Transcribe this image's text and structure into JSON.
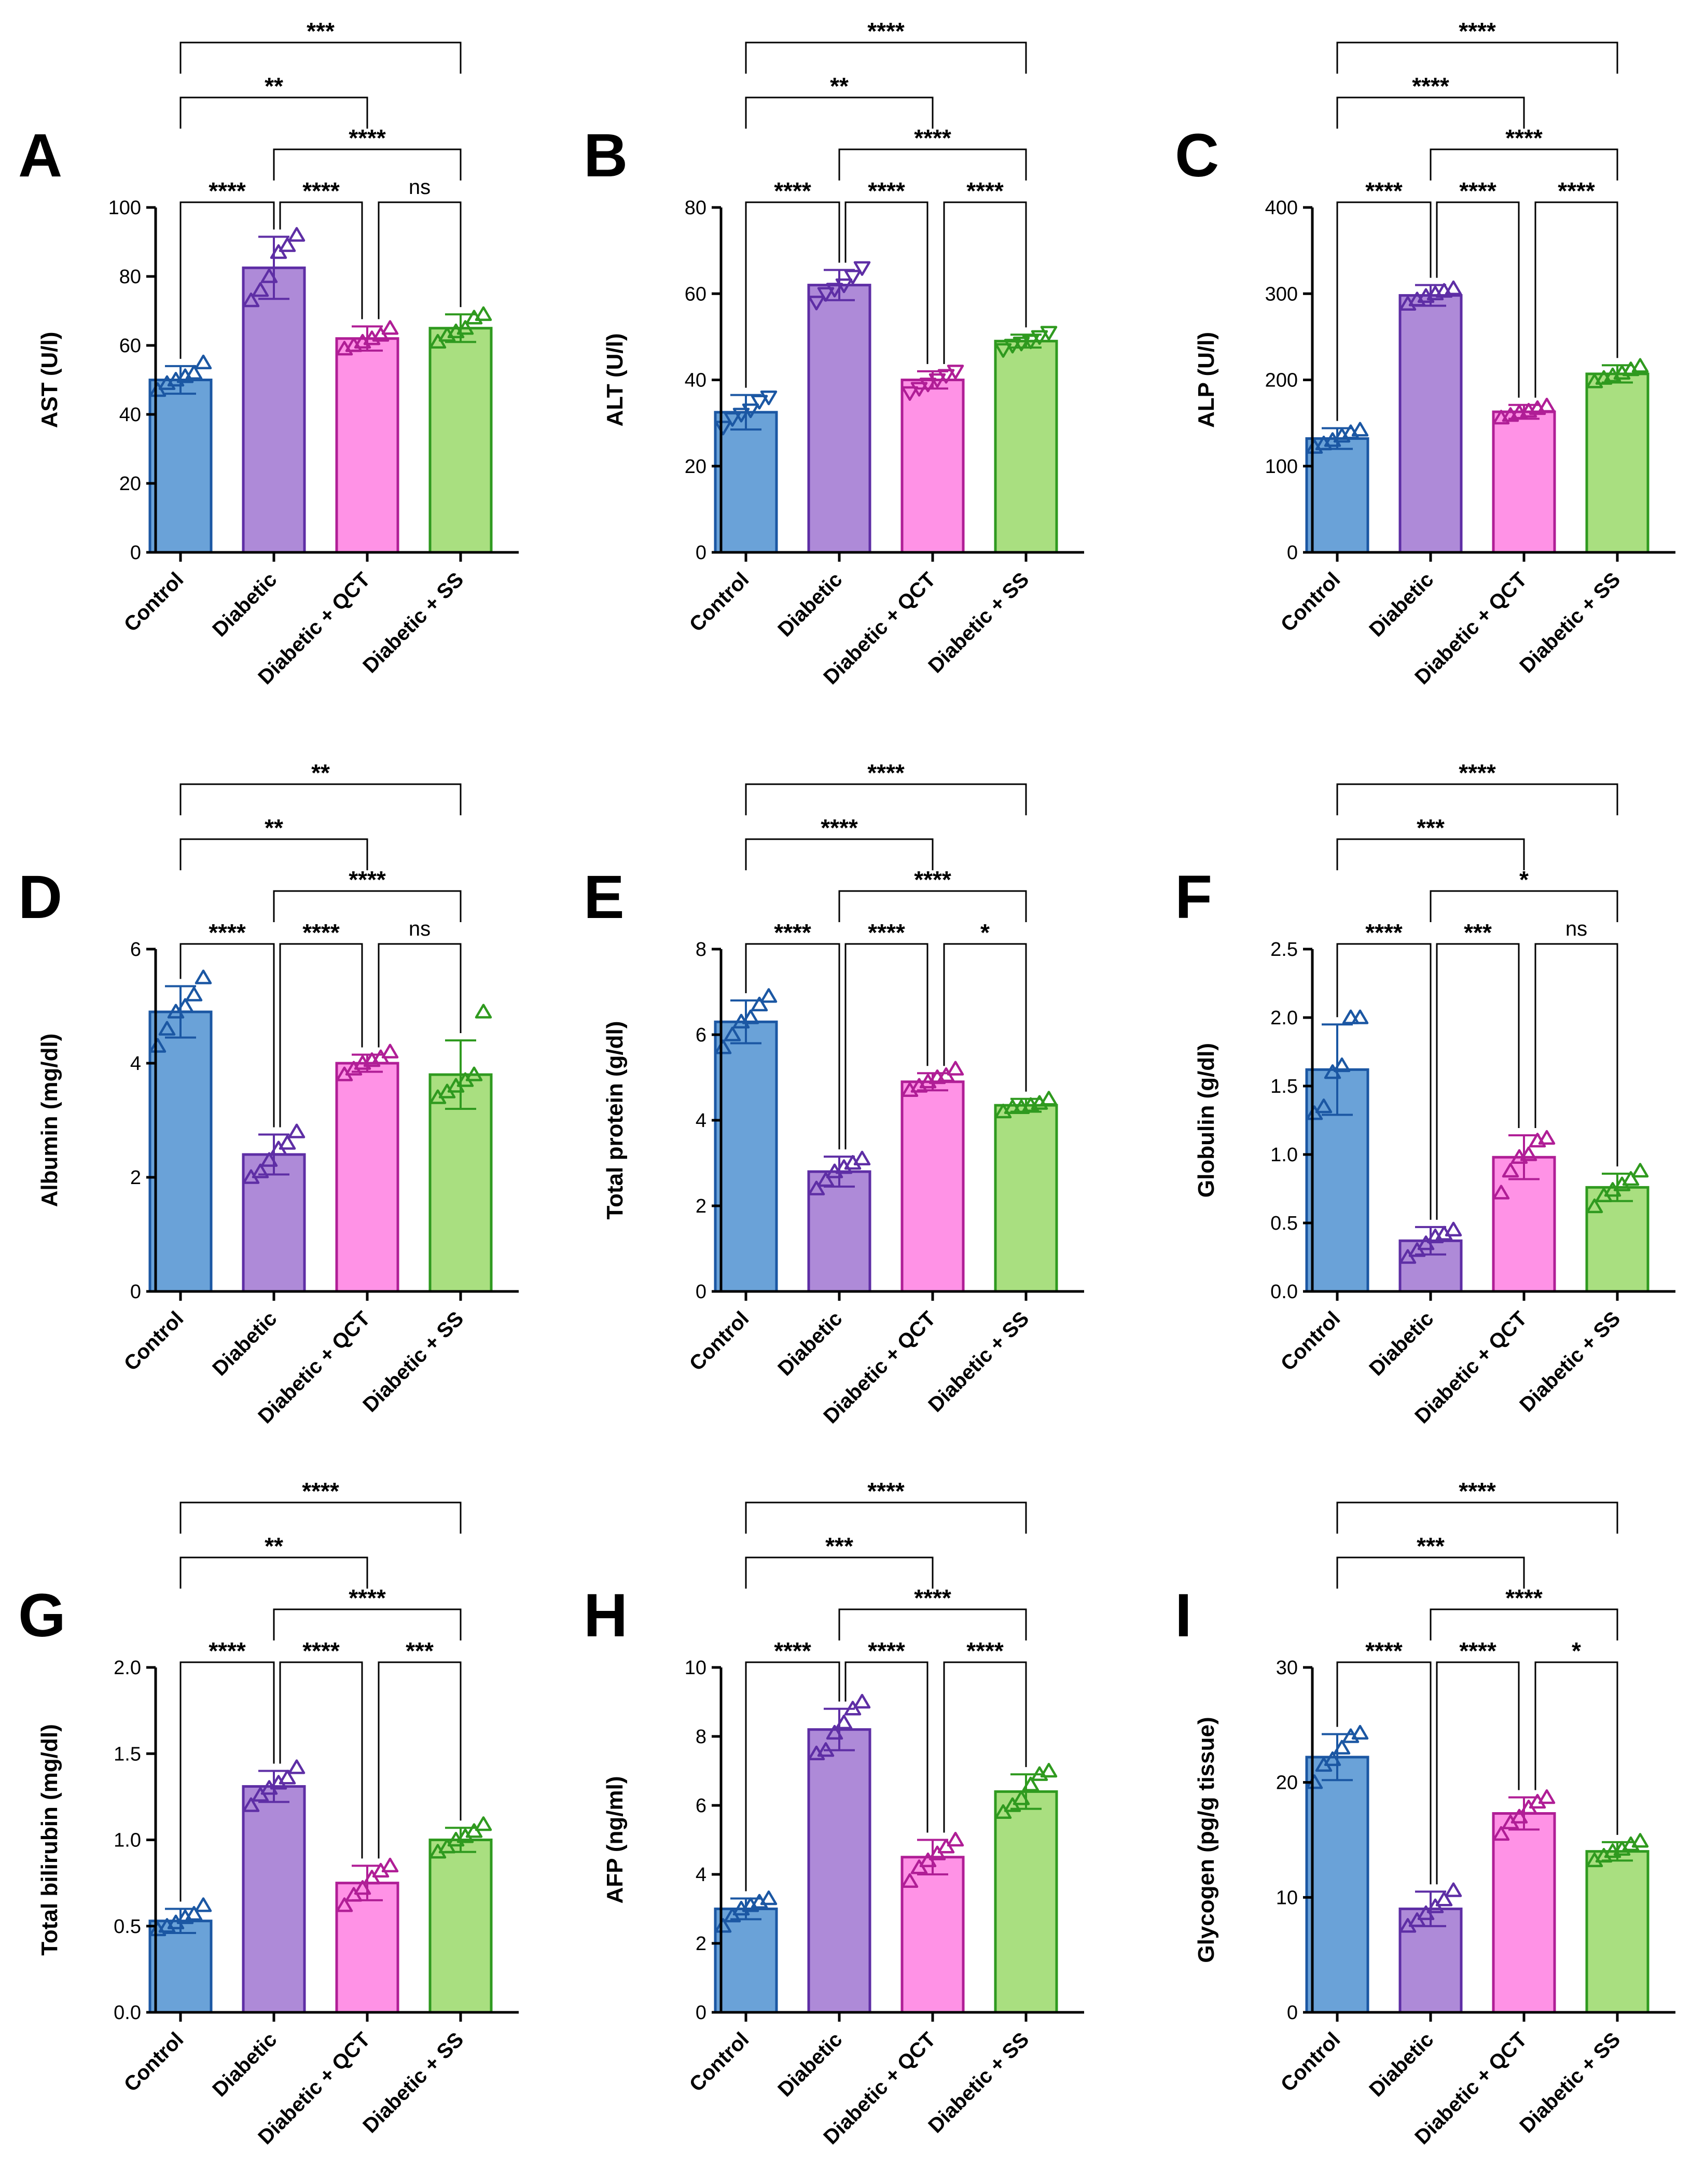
{
  "figure": {
    "colors": {
      "group_fill": [
        "#6aa2d8",
        "#ae8ad8",
        "#ff92e6",
        "#a9df80"
      ],
      "group_stroke": [
        "#1b57a3",
        "#5e2ea5",
        "#b01e96",
        "#2f9a1f"
      ],
      "axis": "#000000"
    },
    "marker_icon": "triangle-marker"
  },
  "chart_data": [
    {
      "id": "A",
      "type": "bar",
      "letter": "A",
      "ylabel": "AST (U/l)",
      "categories": [
        "Control",
        "Diabetic",
        "Diabetic + QCT",
        "Diabetic + SS"
      ],
      "ylim": [
        0,
        100
      ],
      "yticks": [
        0,
        20,
        40,
        60,
        80,
        100
      ],
      "yticklabels": [
        "0",
        "20",
        "40",
        "60",
        "80",
        "100"
      ],
      "values": [
        50,
        82.5,
        62,
        65
      ],
      "sd": [
        4,
        9,
        3.5,
        4
      ],
      "points": [
        [
          47,
          49,
          50,
          51,
          52,
          55
        ],
        [
          73,
          76,
          80,
          87,
          89,
          92
        ],
        [
          59,
          60,
          61,
          62,
          63,
          65
        ],
        [
          61,
          63,
          64,
          65,
          68,
          69
        ]
      ],
      "marker_dir": "up",
      "comparisons": [
        {
          "from": 0,
          "to": 1,
          "label": "****"
        },
        {
          "from": 1,
          "to": 2,
          "label": "****"
        },
        {
          "from": 2,
          "to": 3,
          "label": "ns"
        },
        {
          "from": 1,
          "to": 3,
          "label": "****"
        },
        {
          "from": 0,
          "to": 2,
          "label": "**"
        },
        {
          "from": 0,
          "to": 3,
          "label": "***"
        }
      ]
    },
    {
      "id": "B",
      "type": "bar",
      "letter": "B",
      "ylabel": "ALT (U/l)",
      "categories": [
        "Control",
        "Diabetic",
        "Diabetic + QCT",
        "Diabetic + SS"
      ],
      "ylim": [
        0,
        80
      ],
      "yticks": [
        0,
        20,
        40,
        60,
        80
      ],
      "yticklabels": [
        "0",
        "20",
        "40",
        "60",
        "80"
      ],
      "values": [
        32.5,
        62,
        40,
        49
      ],
      "sd": [
        4,
        3.5,
        2,
        1.5
      ],
      "points": [
        [
          29,
          31,
          32,
          33,
          35,
          36
        ],
        [
          58,
          60,
          61,
          62,
          64,
          66
        ],
        [
          37,
          38,
          39,
          40,
          41,
          42
        ],
        [
          47,
          48,
          48.5,
          49,
          50,
          51
        ]
      ],
      "marker_dir": "down",
      "comparisons": [
        {
          "from": 0,
          "to": 1,
          "label": "****"
        },
        {
          "from": 1,
          "to": 2,
          "label": "****"
        },
        {
          "from": 2,
          "to": 3,
          "label": "****"
        },
        {
          "from": 1,
          "to": 3,
          "label": "****"
        },
        {
          "from": 0,
          "to": 2,
          "label": "**"
        },
        {
          "from": 0,
          "to": 3,
          "label": "****"
        }
      ]
    },
    {
      "id": "C",
      "type": "bar",
      "letter": "C",
      "ylabel": "ALP (U/l)",
      "categories": [
        "Control",
        "Diabetic",
        "Diabetic + QCT",
        "Diabetic + SS"
      ],
      "ylim": [
        0,
        400
      ],
      "yticks": [
        0,
        100,
        200,
        300,
        400
      ],
      "yticklabels": [
        "0",
        "100",
        "200",
        "300",
        "400"
      ],
      "values": [
        132,
        298,
        163,
        207
      ],
      "sd": [
        12,
        12,
        8,
        10
      ],
      "points": [
        [
          122,
          126,
          130,
          135,
          139,
          142
        ],
        [
          288,
          293,
          297,
          300,
          303,
          306
        ],
        [
          156,
          159,
          162,
          164,
          167,
          170
        ],
        [
          198,
          202,
          205,
          208,
          212,
          216
        ]
      ],
      "marker_dir": "up",
      "comparisons": [
        {
          "from": 0,
          "to": 1,
          "label": "****"
        },
        {
          "from": 1,
          "to": 2,
          "label": "****"
        },
        {
          "from": 2,
          "to": 3,
          "label": "****"
        },
        {
          "from": 1,
          "to": 3,
          "label": "****"
        },
        {
          "from": 0,
          "to": 2,
          "label": "****"
        },
        {
          "from": 0,
          "to": 3,
          "label": "****"
        }
      ]
    },
    {
      "id": "D",
      "type": "bar",
      "letter": "D",
      "ylabel": "Albumin (mg/dl)",
      "categories": [
        "Control",
        "Diabetic",
        "Diabetic + QCT",
        "Diabetic + SS"
      ],
      "ylim": [
        0,
        6
      ],
      "yticks": [
        0,
        2,
        4,
        6
      ],
      "yticklabels": [
        "0",
        "2",
        "4",
        "6"
      ],
      "values": [
        4.9,
        2.4,
        4.0,
        3.8
      ],
      "sd": [
        0.45,
        0.35,
        0.15,
        0.6
      ],
      "points": [
        [
          4.3,
          4.6,
          4.9,
          5.0,
          5.2,
          5.5
        ],
        [
          2.0,
          2.1,
          2.3,
          2.5,
          2.6,
          2.8
        ],
        [
          3.8,
          3.9,
          4.0,
          4.05,
          4.1,
          4.2
        ],
        [
          3.4,
          3.5,
          3.6,
          3.7,
          3.8,
          4.9
        ]
      ],
      "marker_dir": "up",
      "comparisons": [
        {
          "from": 0,
          "to": 1,
          "label": "****"
        },
        {
          "from": 1,
          "to": 2,
          "label": "****"
        },
        {
          "from": 2,
          "to": 3,
          "label": "ns"
        },
        {
          "from": 1,
          "to": 3,
          "label": "****"
        },
        {
          "from": 0,
          "to": 2,
          "label": "**"
        },
        {
          "from": 0,
          "to": 3,
          "label": "**"
        }
      ]
    },
    {
      "id": "E",
      "type": "bar",
      "letter": "E",
      "ylabel": "Total protein (g/dl)",
      "categories": [
        "Control",
        "Diabetic",
        "Diabetic + QCT",
        "Diabetic + SS"
      ],
      "ylim": [
        0,
        8
      ],
      "yticks": [
        0,
        2,
        4,
        6,
        8
      ],
      "yticklabels": [
        "0",
        "2",
        "4",
        "6",
        "8"
      ],
      "values": [
        6.3,
        2.8,
        4.9,
        4.35
      ],
      "sd": [
        0.5,
        0.35,
        0.2,
        0.15
      ],
      "points": [
        [
          5.7,
          6.0,
          6.3,
          6.4,
          6.7,
          6.9
        ],
        [
          2.4,
          2.6,
          2.8,
          2.9,
          3.0,
          3.1
        ],
        [
          4.7,
          4.8,
          4.9,
          5.0,
          5.05,
          5.2
        ],
        [
          4.2,
          4.3,
          4.3,
          4.35,
          4.4,
          4.5
        ]
      ],
      "marker_dir": "up",
      "comparisons": [
        {
          "from": 0,
          "to": 1,
          "label": "****"
        },
        {
          "from": 1,
          "to": 2,
          "label": "****"
        },
        {
          "from": 2,
          "to": 3,
          "label": "*"
        },
        {
          "from": 1,
          "to": 3,
          "label": "****"
        },
        {
          "from": 0,
          "to": 2,
          "label": "****"
        },
        {
          "from": 0,
          "to": 3,
          "label": "****"
        }
      ]
    },
    {
      "id": "F",
      "type": "bar",
      "letter": "F",
      "ylabel": "Globulin (g/dl)",
      "categories": [
        "Control",
        "Diabetic",
        "Diabetic + QCT",
        "Diabetic + SS"
      ],
      "ylim": [
        0,
        2.5
      ],
      "yticks": [
        0,
        0.5,
        1.0,
        1.5,
        2.0,
        2.5
      ],
      "yticklabels": [
        "0.0",
        "0.5",
        "1.0",
        "1.5",
        "2.0",
        "2.5"
      ],
      "values": [
        1.62,
        0.37,
        0.98,
        0.76
      ],
      "sd": [
        0.33,
        0.1,
        0.16,
        0.1
      ],
      "points": [
        [
          1.3,
          1.35,
          1.6,
          1.65,
          2.0,
          2.0
        ],
        [
          0.25,
          0.3,
          0.35,
          0.4,
          0.42,
          0.45
        ],
        [
          0.72,
          0.88,
          0.98,
          1.0,
          1.1,
          1.12
        ],
        [
          0.62,
          0.7,
          0.74,
          0.78,
          0.82,
          0.88
        ]
      ],
      "marker_dir": "up",
      "comparisons": [
        {
          "from": 0,
          "to": 1,
          "label": "****"
        },
        {
          "from": 1,
          "to": 2,
          "label": "***"
        },
        {
          "from": 2,
          "to": 3,
          "label": "ns"
        },
        {
          "from": 1,
          "to": 3,
          "label": "*"
        },
        {
          "from": 0,
          "to": 2,
          "label": "***"
        },
        {
          "from": 0,
          "to": 3,
          "label": "****"
        }
      ]
    },
    {
      "id": "G",
      "type": "bar",
      "letter": "G",
      "ylabel": "Total bilirubin (mg/dl)",
      "categories": [
        "Control",
        "Diabetic",
        "Diabetic + QCT",
        "Diabetic + SS"
      ],
      "ylim": [
        0,
        2.0
      ],
      "yticks": [
        0,
        0.5,
        1.0,
        1.5,
        2.0
      ],
      "yticklabels": [
        "0.0",
        "0.5",
        "1.0",
        "1.5",
        "2.0"
      ],
      "values": [
        0.53,
        1.31,
        0.75,
        1.0
      ],
      "sd": [
        0.07,
        0.09,
        0.1,
        0.07
      ],
      "points": [
        [
          0.48,
          0.5,
          0.52,
          0.55,
          0.57,
          0.62
        ],
        [
          1.2,
          1.26,
          1.3,
          1.33,
          1.36,
          1.42
        ],
        [
          0.62,
          0.68,
          0.72,
          0.78,
          0.82,
          0.85
        ],
        [
          0.93,
          0.96,
          1.0,
          1.02,
          1.05,
          1.09
        ]
      ],
      "marker_dir": "up",
      "comparisons": [
        {
          "from": 0,
          "to": 1,
          "label": "****"
        },
        {
          "from": 1,
          "to": 2,
          "label": "****"
        },
        {
          "from": 2,
          "to": 3,
          "label": "***"
        },
        {
          "from": 1,
          "to": 3,
          "label": "****"
        },
        {
          "from": 0,
          "to": 2,
          "label": "**"
        },
        {
          "from": 0,
          "to": 3,
          "label": "****"
        }
      ]
    },
    {
      "id": "H",
      "type": "bar",
      "letter": "H",
      "ylabel": "AFP (ng/ml)",
      "categories": [
        "Control",
        "Diabetic",
        "Diabetic + QCT",
        "Diabetic + SS"
      ],
      "ylim": [
        0,
        10
      ],
      "yticks": [
        0,
        2,
        4,
        6,
        8,
        10
      ],
      "yticklabels": [
        "0",
        "2",
        "4",
        "6",
        "8",
        "10"
      ],
      "values": [
        3.0,
        8.2,
        4.5,
        6.4
      ],
      "sd": [
        0.3,
        0.6,
        0.5,
        0.5
      ],
      "points": [
        [
          2.5,
          2.8,
          3.0,
          3.1,
          3.2,
          3.3
        ],
        [
          7.5,
          7.6,
          8.1,
          8.4,
          8.8,
          9.0
        ],
        [
          3.8,
          4.2,
          4.4,
          4.6,
          4.8,
          5.0
        ],
        [
          5.8,
          6.0,
          6.2,
          6.6,
          6.9,
          7.0
        ]
      ],
      "marker_dir": "up",
      "comparisons": [
        {
          "from": 0,
          "to": 1,
          "label": "****"
        },
        {
          "from": 1,
          "to": 2,
          "label": "****"
        },
        {
          "from": 2,
          "to": 3,
          "label": "****"
        },
        {
          "from": 1,
          "to": 3,
          "label": "****"
        },
        {
          "from": 0,
          "to": 2,
          "label": "***"
        },
        {
          "from": 0,
          "to": 3,
          "label": "****"
        }
      ]
    },
    {
      "id": "I",
      "type": "bar",
      "letter": "I",
      "ylabel": "Glycogen (pg/g tissue)",
      "categories": [
        "Control",
        "Diabetic",
        "Diabetic + QCT",
        "Diabetic + SS"
      ],
      "ylim": [
        0,
        30
      ],
      "yticks": [
        0,
        10,
        20,
        30
      ],
      "yticklabels": [
        "0",
        "10",
        "20",
        "30"
      ],
      "values": [
        22.2,
        9.0,
        17.3,
        14.0
      ],
      "sd": [
        2.0,
        1.5,
        1.4,
        0.8
      ],
      "points": [
        [
          20.0,
          21.5,
          22.0,
          23.0,
          24.0,
          24.3
        ],
        [
          7.5,
          8.0,
          8.6,
          9.2,
          9.8,
          10.6
        ],
        [
          15.5,
          16.5,
          17.0,
          17.8,
          18.3,
          18.7
        ],
        [
          13.2,
          13.6,
          14.0,
          14.2,
          14.6,
          14.9
        ]
      ],
      "marker_dir": "up",
      "comparisons": [
        {
          "from": 0,
          "to": 1,
          "label": "****"
        },
        {
          "from": 1,
          "to": 2,
          "label": "****"
        },
        {
          "from": 2,
          "to": 3,
          "label": "*"
        },
        {
          "from": 1,
          "to": 3,
          "label": "****"
        },
        {
          "from": 0,
          "to": 2,
          "label": "***"
        },
        {
          "from": 0,
          "to": 3,
          "label": "****"
        }
      ]
    }
  ]
}
